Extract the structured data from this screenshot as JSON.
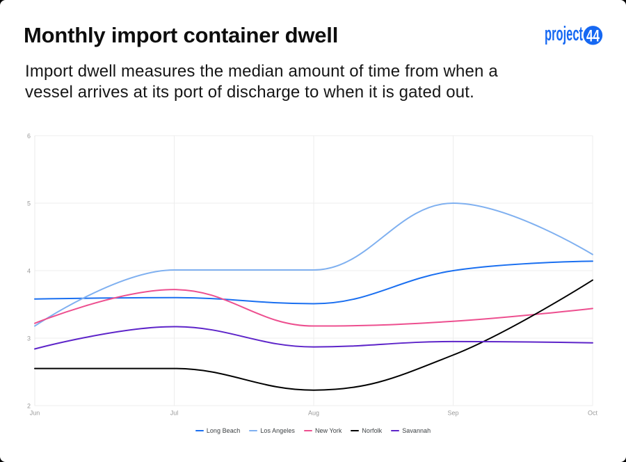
{
  "header": {
    "title": "Monthly import container dwell",
    "subtitle_lines": [
      "Import dwell measures the median amount of time from when a",
      "vessel arrives at its port of discharge to when it is gated out."
    ],
    "logo": {
      "wordmark": "project",
      "badge": "44",
      "color": "#1668f2",
      "badge_text_color": "#ffffff"
    }
  },
  "chart_data": {
    "type": "line",
    "categories": [
      "Jun",
      "Jul",
      "Aug",
      "Sep",
      "Oct"
    ],
    "series": [
      {
        "name": "Long Beach",
        "color": "#1a6ff0",
        "values": [
          3.58,
          3.6,
          3.51,
          4.0,
          4.14
        ]
      },
      {
        "name": "Los Angeles",
        "color": "#7fb0f0",
        "values": [
          3.18,
          4.01,
          4.01,
          5.0,
          4.24
        ]
      },
      {
        "name": "New York",
        "color": "#ed4f8f",
        "values": [
          3.22,
          3.72,
          3.18,
          3.25,
          3.44
        ]
      },
      {
        "name": "Norfolk",
        "color": "#000000",
        "values": [
          2.55,
          2.55,
          2.23,
          2.75,
          3.86
        ]
      },
      {
        "name": "Savannah",
        "color": "#5d24c9",
        "values": [
          2.84,
          3.17,
          2.87,
          2.95,
          2.93
        ]
      }
    ],
    "yticks": [
      2,
      3,
      4,
      5,
      6
    ],
    "ylim": [
      2,
      6
    ],
    "grid": true,
    "legend_position": "bottom",
    "title": "Monthly import container dwell",
    "xlabel": "",
    "ylabel": ""
  },
  "style": {
    "grid_color": "#ededed",
    "axis_color": "#e9e9e9",
    "tick_label_color": "#9a9a9a"
  }
}
